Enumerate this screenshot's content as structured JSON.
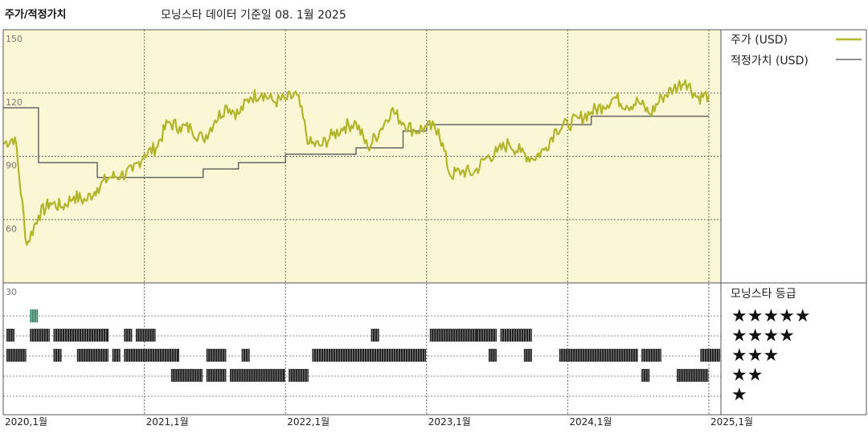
{
  "title": "주가/적정가치",
  "subtitle": "모닝스타 데이터 기준일 08. 1월 2025",
  "colors": {
    "panel_bg": "#fbf7d4",
    "price": "#b2b52a",
    "fair_value": "#666666",
    "rating_bar": "#222222",
    "rating_special": "#3a8a6a",
    "grid": "#555555"
  },
  "chart_data": [
    {
      "type": "line",
      "title": "주가/적정가치",
      "ylim": [
        30,
        150
      ],
      "y_ticks": [
        150,
        120,
        90,
        60,
        30
      ],
      "x_ticks": [
        "2020,1월",
        "2021,1월",
        "2022,1월",
        "2023,1월",
        "2024,1월",
        "2025,1월"
      ],
      "xlim": [
        "2020-01",
        "2025-01"
      ],
      "grid": true,
      "legend_position": "top-right",
      "series": [
        {
          "name": "주가 (USD)",
          "color": "#b2b52a",
          "x": [
            "2020-01",
            "2020-02",
            "2020-03",
            "2020-04",
            "2020-05",
            "2020-06",
            "2020-07",
            "2020-08",
            "2020-09",
            "2020-10",
            "2020-11",
            "2020-12",
            "2021-01",
            "2021-02",
            "2021-03",
            "2021-04",
            "2021-05",
            "2021-06",
            "2021-07",
            "2021-08",
            "2021-09",
            "2021-10",
            "2021-11",
            "2021-12",
            "2022-01",
            "2022-02",
            "2022-03",
            "2022-04",
            "2022-05",
            "2022-06",
            "2022-07",
            "2022-08",
            "2022-09",
            "2022-10",
            "2022-11",
            "2022-12",
            "2023-01",
            "2023-02",
            "2023-03",
            "2023-04",
            "2023-05",
            "2023-06",
            "2023-07",
            "2023-08",
            "2023-09",
            "2023-10",
            "2023-11",
            "2023-12",
            "2024-01",
            "2024-02",
            "2024-03",
            "2024-04",
            "2024-05",
            "2024-06",
            "2024-07",
            "2024-08",
            "2024-09",
            "2024-10",
            "2024-11",
            "2024-12",
            "2025-01"
          ],
          "values": [
            96,
            99,
            48,
            62,
            68,
            66,
            71,
            69,
            75,
            80,
            81,
            83,
            91,
            94,
            106,
            104,
            103,
            98,
            107,
            114,
            110,
            118,
            120,
            116,
            117,
            119,
            96,
            95,
            100,
            104,
            106,
            94,
            102,
            112,
            106,
            102,
            104,
            103,
            81,
            83,
            82,
            89,
            92,
            96,
            92,
            89,
            93,
            103,
            105,
            108,
            111,
            114,
            118,
            114,
            116,
            110,
            118,
            122,
            126,
            118,
            119
          ]
        },
        {
          "name": "적정가치 (USD)",
          "color": "#666666",
          "x": [
            "2020-01",
            "2020-02",
            "2020-04",
            "2020-09",
            "2021-01",
            "2021-06",
            "2021-09",
            "2022-01",
            "2022-07",
            "2022-11",
            "2023-01",
            "2023-06",
            "2023-09",
            "2024-01",
            "2024-03",
            "2025-01"
          ],
          "values": [
            113,
            113,
            87,
            80,
            80,
            84,
            87,
            91,
            94,
            102,
            105,
            105,
            105,
            105,
            109,
            109
          ]
        }
      ]
    },
    {
      "type": "table",
      "title": "모닝스타 등급",
      "levels": [
        "★★★★★",
        "★★★★",
        "★★★",
        "★★",
        "★"
      ],
      "segments": {
        "5": [
          [
            "2020-03",
            "2020-03"
          ]
        ],
        "4": [
          [
            "2020-01",
            "2020-01"
          ],
          [
            "2020-03",
            "2020-04"
          ],
          [
            "2020-05",
            "2020-09"
          ],
          [
            "2020-11",
            "2020-11"
          ],
          [
            "2020-12",
            "2021-01"
          ],
          [
            "2022-08",
            "2022-08"
          ],
          [
            "2023-01",
            "2023-05"
          ],
          [
            "2023-05",
            "2023-06"
          ],
          [
            "2023-07",
            "2023-09"
          ]
        ],
        "3": [
          [
            "2020-01",
            "2020-02"
          ],
          [
            "2020-05",
            "2020-05"
          ],
          [
            "2020-07",
            "2020-09"
          ],
          [
            "2020-10",
            "2020-10"
          ],
          [
            "2020-11",
            "2021-03"
          ],
          [
            "2021-06",
            "2021-07"
          ],
          [
            "2021-09",
            "2021-09"
          ],
          [
            "2022-03",
            "2022-12"
          ],
          [
            "2023-06",
            "2023-06"
          ],
          [
            "2023-09",
            "2023-09"
          ],
          [
            "2023-12",
            "2024-06"
          ],
          [
            "2024-07",
            "2024-08"
          ],
          [
            "2024-12",
            "2025-01"
          ]
        ],
        "2": [
          [
            "2021-03",
            "2021-05"
          ],
          [
            "2021-06",
            "2021-07"
          ],
          [
            "2021-08",
            "2021-12"
          ],
          [
            "2022-01",
            "2022-02"
          ],
          [
            "2024-07",
            "2024-07"
          ],
          [
            "2024-10",
            "2024-12"
          ]
        ],
        "1": []
      }
    }
  ],
  "legend": {
    "price_label": "주가 (USD)",
    "fair_label": "적정가치 (USD)"
  },
  "rating_header": "모닝스타 등급"
}
